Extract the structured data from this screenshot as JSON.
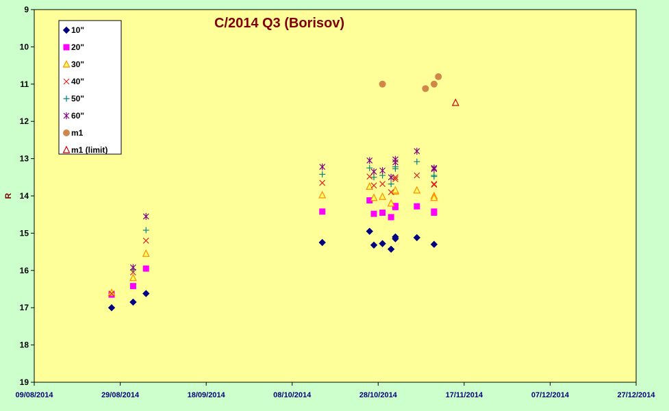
{
  "chart_data": {
    "type": "scatter",
    "title": "C/2014 Q3 (Borisov)",
    "xlabel": "",
    "ylabel": "R",
    "y_inverted": true,
    "ylim": [
      9,
      19
    ],
    "xlim": [
      "2014-08-09",
      "2014-12-27"
    ],
    "x_tick_labels": [
      "09/08/2014",
      "29/08/2014",
      "18/09/2014",
      "08/10/2014",
      "28/10/2014",
      "17/11/2014",
      "07/12/2014",
      "27/12/2014"
    ],
    "y_tick_labels": [
      "9",
      "10",
      "11",
      "12",
      "13",
      "14",
      "15",
      "16",
      "17",
      "18",
      "19"
    ],
    "grid": false,
    "legend_position": "top-left",
    "plot_background": "#ffff99",
    "figure_background": "#ccffcc",
    "series": [
      {
        "name": "10\"",
        "marker": "diamond",
        "color": "#000080",
        "points": [
          [
            "2014-08-27",
            17.0
          ],
          [
            "2014-09-01",
            16.85
          ],
          [
            "2014-09-04",
            16.62
          ],
          [
            "2014-10-15",
            15.25
          ],
          [
            "2014-10-26",
            14.95
          ],
          [
            "2014-10-27",
            15.32
          ],
          [
            "2014-10-29",
            15.28
          ],
          [
            "2014-10-31",
            15.43
          ],
          [
            "2014-11-01",
            15.15
          ],
          [
            "2014-11-01",
            15.1
          ],
          [
            "2014-11-06",
            15.12
          ],
          [
            "2014-11-10",
            15.3
          ]
        ]
      },
      {
        "name": "20\"",
        "marker": "square",
        "color": "#ff00ff",
        "points": [
          [
            "2014-08-27",
            16.65
          ],
          [
            "2014-09-01",
            16.42
          ],
          [
            "2014-09-04",
            15.95
          ],
          [
            "2014-10-15",
            14.42
          ],
          [
            "2014-10-26",
            14.12
          ],
          [
            "2014-10-27",
            14.48
          ],
          [
            "2014-10-29",
            14.45
          ],
          [
            "2014-10-31",
            14.57
          ],
          [
            "2014-11-01",
            14.3
          ],
          [
            "2014-11-01",
            14.27
          ],
          [
            "2014-11-06",
            14.28
          ],
          [
            "2014-11-10",
            14.42
          ],
          [
            "2014-11-10",
            14.45
          ]
        ]
      },
      {
        "name": "30\"",
        "marker": "triangle",
        "color": "#ff8c00",
        "points": [
          [
            "2014-08-27",
            16.6
          ],
          [
            "2014-09-01",
            16.2
          ],
          [
            "2014-09-04",
            15.55
          ],
          [
            "2014-10-15",
            13.98
          ],
          [
            "2014-10-26",
            13.75
          ],
          [
            "2014-10-27",
            14.05
          ],
          [
            "2014-10-29",
            14.02
          ],
          [
            "2014-10-31",
            14.2
          ],
          [
            "2014-11-01",
            13.88
          ],
          [
            "2014-11-01",
            13.85
          ],
          [
            "2014-11-06",
            13.85
          ],
          [
            "2014-11-10",
            14.0
          ],
          [
            "2014-11-10",
            14.05
          ]
        ]
      },
      {
        "name": "40\"",
        "marker": "x",
        "color": "#dd2222",
        "points": [
          [
            "2014-08-27",
            16.62
          ],
          [
            "2014-09-01",
            16.05
          ],
          [
            "2014-09-04",
            15.2
          ],
          [
            "2014-10-15",
            13.65
          ],
          [
            "2014-10-26",
            13.48
          ],
          [
            "2014-10-27",
            13.72
          ],
          [
            "2014-10-29",
            13.68
          ],
          [
            "2014-10-31",
            13.9
          ],
          [
            "2014-11-01",
            13.55
          ],
          [
            "2014-11-01",
            13.5
          ],
          [
            "2014-11-06",
            13.45
          ],
          [
            "2014-11-10",
            13.68
          ],
          [
            "2014-11-10",
            13.7
          ]
        ]
      },
      {
        "name": "50\"",
        "marker": "plus",
        "color": "#008080",
        "points": [
          [
            "2014-09-01",
            15.98
          ],
          [
            "2014-09-04",
            14.92
          ],
          [
            "2014-10-15",
            13.42
          ],
          [
            "2014-10-26",
            13.25
          ],
          [
            "2014-10-27",
            13.5
          ],
          [
            "2014-10-29",
            13.45
          ],
          [
            "2014-10-31",
            13.68
          ],
          [
            "2014-11-01",
            13.27
          ],
          [
            "2014-11-01",
            13.22
          ],
          [
            "2014-11-06",
            13.08
          ],
          [
            "2014-11-10",
            13.45
          ],
          [
            "2014-11-10",
            13.48
          ]
        ]
      },
      {
        "name": "60\"",
        "marker": "star",
        "color": "#800080",
        "points": [
          [
            "2014-09-01",
            15.92
          ],
          [
            "2014-09-04",
            14.55
          ],
          [
            "2014-10-15",
            13.22
          ],
          [
            "2014-10-26",
            13.05
          ],
          [
            "2014-10-27",
            13.35
          ],
          [
            "2014-10-29",
            13.32
          ],
          [
            "2014-10-31",
            13.5
          ],
          [
            "2014-11-01",
            13.1
          ],
          [
            "2014-11-01",
            13.02
          ],
          [
            "2014-11-06",
            12.8
          ],
          [
            "2014-11-10",
            13.25
          ],
          [
            "2014-11-10",
            13.28
          ]
        ]
      },
      {
        "name": "m1",
        "marker": "circle",
        "color": "#d2874a",
        "points": [
          [
            "2014-10-29",
            11.0
          ],
          [
            "2014-11-08",
            11.12
          ],
          [
            "2014-11-10",
            11.0
          ],
          [
            "2014-11-11",
            10.8
          ]
        ]
      },
      {
        "name": "m1 (limit)",
        "marker": "triangle-open",
        "color": "#cc0000",
        "points": [
          [
            "2014-11-15",
            11.5
          ]
        ]
      }
    ]
  }
}
